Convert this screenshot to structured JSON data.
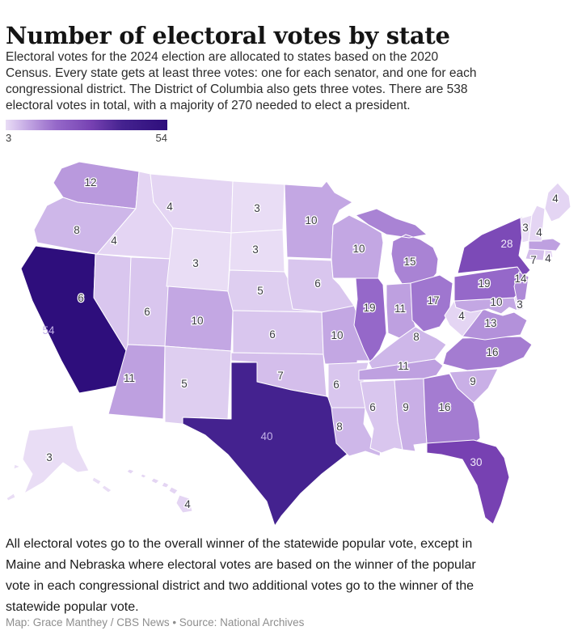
{
  "header": {
    "title": "Number of electoral votes by state",
    "subtitle_lines": [
      "Electoral votes for the 2024 election are allocated to states based on the 2020",
      "Census. Every state gets at least three votes: one for each senator, and one for each",
      "congressional district. The District of Columbia also gets three votes. There are 538",
      "electoral votes in total, with a majority of 270 needed to elect a president."
    ]
  },
  "legend": {
    "min_label": "3",
    "max_label": "54"
  },
  "footer": {
    "note_lines": [
      "All electoral votes go to the overall winner of the statewide popular vote, except in",
      "Maine and Nebraska where electoral votes are based on the winner of the popular",
      "vote in each congressional district and two additional votes go to the winner of the",
      "statewide popular vote."
    ],
    "attribution": "Map: Grace Manthey / CBS News • Source: National Archives"
  },
  "chart_data": {
    "type": "choropleth",
    "title": "Number of electoral votes by state",
    "unit": "electoral votes",
    "value_range": [
      3,
      54
    ],
    "total_note": "538 electoral votes in total, majority of 270 needed",
    "legend_position": "top-left",
    "color_scale": {
      "min_value": 3,
      "max_value": 54,
      "stops": [
        [
          3,
          "#e9ddf5"
        ],
        [
          6,
          "#d9c6ee"
        ],
        [
          10,
          "#c3a7e3"
        ],
        [
          15,
          "#a983d4"
        ],
        [
          19,
          "#9568c9"
        ],
        [
          28,
          "#7c4ab7"
        ],
        [
          30,
          "#7741b2"
        ],
        [
          40,
          "#44228f"
        ],
        [
          54,
          "#2e0e7c"
        ]
      ]
    },
    "label_colors": {
      "dark": "#3c3c44",
      "mid_light": "#f0eafa",
      "deep_light": "#c3b1e8"
    },
    "states": [
      {
        "id": "WA",
        "votes": 12
      },
      {
        "id": "OR",
        "votes": 8
      },
      {
        "id": "CA",
        "votes": 54
      },
      {
        "id": "ID",
        "votes": 4
      },
      {
        "id": "NV",
        "votes": 6
      },
      {
        "id": "UT",
        "votes": 6
      },
      {
        "id": "AZ",
        "votes": 11
      },
      {
        "id": "MT",
        "votes": 4
      },
      {
        "id": "WY",
        "votes": 3
      },
      {
        "id": "CO",
        "votes": 10
      },
      {
        "id": "NM",
        "votes": 5
      },
      {
        "id": "ND",
        "votes": 3
      },
      {
        "id": "SD",
        "votes": 3
      },
      {
        "id": "NE",
        "votes": 5
      },
      {
        "id": "KS",
        "votes": 6
      },
      {
        "id": "OK",
        "votes": 7
      },
      {
        "id": "TX",
        "votes": 40
      },
      {
        "id": "MN",
        "votes": 10
      },
      {
        "id": "IA",
        "votes": 6
      },
      {
        "id": "MO",
        "votes": 10
      },
      {
        "id": "AR",
        "votes": 6
      },
      {
        "id": "LA",
        "votes": 8
      },
      {
        "id": "WI",
        "votes": 10
      },
      {
        "id": "IL",
        "votes": 19
      },
      {
        "id": "MI",
        "votes": 15
      },
      {
        "id": "IN",
        "votes": 11
      },
      {
        "id": "OH",
        "votes": 17
      },
      {
        "id": "KY",
        "votes": 8
      },
      {
        "id": "TN",
        "votes": 11
      },
      {
        "id": "MS",
        "votes": 6
      },
      {
        "id": "AL",
        "votes": 9
      },
      {
        "id": "GA",
        "votes": 16
      },
      {
        "id": "FL",
        "votes": 30
      },
      {
        "id": "SC",
        "votes": 9
      },
      {
        "id": "NC",
        "votes": 16
      },
      {
        "id": "VA",
        "votes": 13
      },
      {
        "id": "WV",
        "votes": 4
      },
      {
        "id": "MD",
        "votes": 10
      },
      {
        "id": "DE",
        "votes": 3
      },
      {
        "id": "PA",
        "votes": 19
      },
      {
        "id": "NJ",
        "votes": 14
      },
      {
        "id": "NY",
        "votes": 28
      },
      {
        "id": "CT",
        "votes": 7
      },
      {
        "id": "RI",
        "votes": 4
      },
      {
        "id": "MA",
        "votes": 11,
        "label_hidden": true
      },
      {
        "id": "VT",
        "votes": 3
      },
      {
        "id": "NH",
        "votes": 4
      },
      {
        "id": "ME",
        "votes": 4
      },
      {
        "id": "AK",
        "votes": 3
      },
      {
        "id": "HI",
        "votes": 4
      }
    ]
  }
}
